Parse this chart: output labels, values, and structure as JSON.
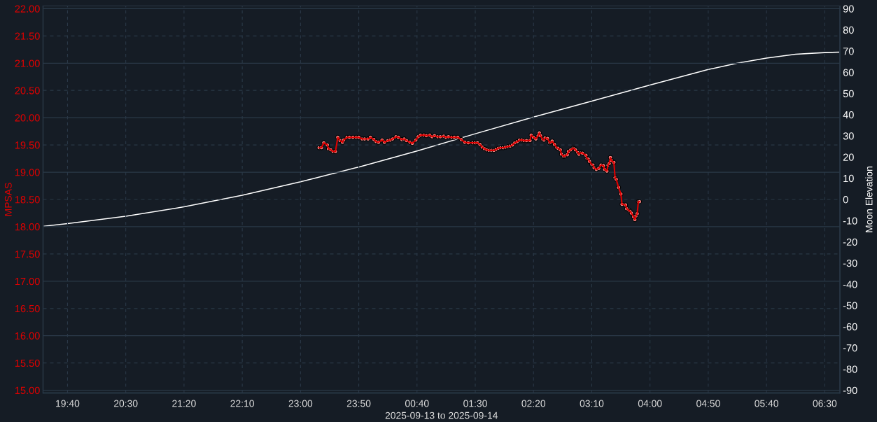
{
  "chart_data": {
    "type": "line",
    "xlabel": "2025-09-13 to 2025-09-14",
    "ylabel": "MPSAS",
    "y2label": "Moon Elevation",
    "xlim": [
      "2025-09-13T19:19",
      "2025-09-14T06:43"
    ],
    "xticks": [
      {
        "value": "2025-09-13T19:40",
        "label": "19:40"
      },
      {
        "value": "2025-09-13T20:30",
        "label": "20:30"
      },
      {
        "value": "2025-09-13T21:20",
        "label": "21:20"
      },
      {
        "value": "2025-09-13T22:10",
        "label": "22:10"
      },
      {
        "value": "2025-09-13T23:00",
        "label": "23:00"
      },
      {
        "value": "2025-09-13T23:50",
        "label": "23:50"
      },
      {
        "value": "2025-09-14T00:40",
        "label": "00:40"
      },
      {
        "value": "2025-09-14T01:30",
        "label": "01:30"
      },
      {
        "value": "2025-09-14T02:20",
        "label": "02:20"
      },
      {
        "value": "2025-09-14T03:10",
        "label": "03:10"
      },
      {
        "value": "2025-09-14T04:00",
        "label": "04:00"
      },
      {
        "value": "2025-09-14T04:50",
        "label": "04:50"
      },
      {
        "value": "2025-09-14T05:40",
        "label": "05:40"
      },
      {
        "value": "2025-09-14T06:30",
        "label": "06:30"
      }
    ],
    "ylim": [
      14.95,
      22.05
    ],
    "yticks": [
      {
        "value": 22,
        "label": "22.00"
      },
      {
        "value": 21.5,
        "label": "21.50"
      },
      {
        "value": 21,
        "label": "21.00"
      },
      {
        "value": 20.5,
        "label": "20.50"
      },
      {
        "value": 20,
        "label": "20.00"
      },
      {
        "value": 19.5,
        "label": "19.50"
      },
      {
        "value": 19,
        "label": "19.00"
      },
      {
        "value": 18.5,
        "label": "18.50"
      },
      {
        "value": 18,
        "label": "18.00"
      },
      {
        "value": 17.5,
        "label": "17.50"
      },
      {
        "value": 17,
        "label": "17.00"
      },
      {
        "value": 16.5,
        "label": "16.50"
      },
      {
        "value": 16,
        "label": "16.00"
      },
      {
        "value": 15.5,
        "label": "15.50"
      },
      {
        "value": 15,
        "label": "15.00"
      }
    ],
    "y2lim": [
      -91.3,
      91.3
    ],
    "y2ticks": [
      90,
      80,
      70,
      60,
      50,
      40,
      30,
      20,
      10,
      0,
      -10,
      -20,
      -30,
      -40,
      -50,
      -60,
      -70,
      -80,
      -90
    ],
    "grid": true,
    "series": [
      {
        "color": "#e00000",
        "marker": "circle",
        "x": [
          "2025-09-13T23:16",
          "2025-09-13T23:18",
          "2025-09-13T23:20",
          "2025-09-13T23:23",
          "2025-09-13T23:24",
          "2025-09-13T23:26",
          "2025-09-13T23:28",
          "2025-09-13T23:30",
          "2025-09-13T23:32",
          "2025-09-13T23:34",
          "2025-09-13T23:36",
          "2025-09-13T23:37",
          "2025-09-13T23:40",
          "2025-09-13T23:42",
          "2025-09-13T23:45",
          "2025-09-13T23:48",
          "2025-09-13T23:50",
          "2025-09-13T23:53",
          "2025-09-13T23:55",
          "2025-09-13T23:58",
          "2025-09-14T00:00",
          "2025-09-14T00:03",
          "2025-09-14T00:05",
          "2025-09-14T00:07",
          "2025-09-14T00:10",
          "2025-09-14T00:12",
          "2025-09-14T00:15",
          "2025-09-14T00:17",
          "2025-09-14T00:19",
          "2025-09-14T00:22",
          "2025-09-14T00:24",
          "2025-09-14T00:27",
          "2025-09-14T00:29",
          "2025-09-14T00:31",
          "2025-09-14T00:34",
          "2025-09-14T00:36",
          "2025-09-14T00:39",
          "2025-09-14T00:41",
          "2025-09-14T00:43",
          "2025-09-14T00:46",
          "2025-09-14T00:48",
          "2025-09-14T00:51",
          "2025-09-14T00:53",
          "2025-09-14T00:55",
          "2025-09-14T00:58",
          "2025-09-14T01:00",
          "2025-09-14T01:03",
          "2025-09-14T01:05",
          "2025-09-14T01:07",
          "2025-09-14T01:10",
          "2025-09-14T01:12",
          "2025-09-14T01:15",
          "2025-09-14T01:18",
          "2025-09-14T01:21",
          "2025-09-14T01:24",
          "2025-09-14T01:28",
          "2025-09-14T01:30",
          "2025-09-14T01:32",
          "2025-09-14T01:34",
          "2025-09-14T01:36",
          "2025-09-14T01:38",
          "2025-09-14T01:40",
          "2025-09-14T01:42",
          "2025-09-14T01:44",
          "2025-09-14T01:46",
          "2025-09-14T01:48",
          "2025-09-14T01:50",
          "2025-09-14T01:52",
          "2025-09-14T01:54",
          "2025-09-14T01:56",
          "2025-09-14T01:58",
          "2025-09-14T02:00",
          "2025-09-14T02:02",
          "2025-09-14T02:04",
          "2025-09-14T02:06",
          "2025-09-14T02:08",
          "2025-09-14T02:10",
          "2025-09-14T02:12",
          "2025-09-14T02:14",
          "2025-09-14T02:17",
          "2025-09-14T02:18",
          "2025-09-14T02:20",
          "2025-09-14T02:22",
          "2025-09-14T02:24",
          "2025-09-14T02:25",
          "2025-09-14T02:26",
          "2025-09-14T02:28",
          "2025-09-14T02:29",
          "2025-09-14T02:30",
          "2025-09-14T02:32",
          "2025-09-14T02:34",
          "2025-09-14T02:35",
          "2025-09-14T02:36",
          "2025-09-14T02:38",
          "2025-09-14T02:40",
          "2025-09-14T02:41",
          "2025-09-14T02:43",
          "2025-09-14T02:44",
          "2025-09-14T02:46",
          "2025-09-14T02:47",
          "2025-09-14T02:49",
          "2025-09-14T02:50",
          "2025-09-14T02:52",
          "2025-09-14T02:54",
          "2025-09-14T02:55",
          "2025-09-14T02:56",
          "2025-09-14T02:58",
          "2025-09-14T02:59",
          "2025-09-14T03:01",
          "2025-09-14T03:02",
          "2025-09-14T03:05",
          "2025-09-14T03:06",
          "2025-09-14T03:07",
          "2025-09-14T03:08",
          "2025-09-14T03:10",
          "2025-09-14T03:11",
          "2025-09-14T03:12",
          "2025-09-14T03:14",
          "2025-09-14T03:16",
          "2025-09-14T03:18",
          "2025-09-14T03:20",
          "2025-09-14T03:21",
          "2025-09-14T03:23",
          "2025-09-14T03:24",
          "2025-09-14T03:25",
          "2025-09-14T03:26",
          "2025-09-14T03:27",
          "2025-09-14T03:29",
          "2025-09-14T03:30",
          "2025-09-14T03:31",
          "2025-09-14T03:33",
          "2025-09-14T03:35",
          "2025-09-14T03:36",
          "2025-09-14T03:39",
          "2025-09-14T03:40",
          "2025-09-14T03:42",
          "2025-09-14T03:43",
          "2025-09-14T03:44",
          "2025-09-14T03:46",
          "2025-09-14T03:47",
          "2025-09-14T03:48",
          "2025-09-14T03:49",
          "2025-09-14T03:50",
          "2025-09-14T03:51"
        ],
        "values": [
          19.45,
          19.45,
          19.54,
          19.5,
          19.43,
          19.41,
          19.38,
          19.38,
          19.64,
          19.58,
          19.55,
          19.59,
          19.64,
          19.64,
          19.64,
          19.64,
          19.64,
          19.61,
          19.61,
          19.61,
          19.64,
          19.6,
          19.56,
          19.55,
          19.59,
          19.55,
          19.58,
          19.59,
          19.61,
          19.65,
          19.64,
          19.6,
          19.61,
          19.58,
          19.55,
          19.53,
          19.59,
          19.65,
          19.68,
          19.68,
          19.67,
          19.68,
          19.65,
          19.67,
          19.65,
          19.65,
          19.66,
          19.64,
          19.65,
          19.64,
          19.64,
          19.64,
          19.6,
          19.55,
          19.54,
          19.54,
          19.54,
          19.54,
          19.51,
          19.46,
          19.43,
          19.41,
          19.4,
          19.4,
          19.4,
          19.42,
          19.44,
          19.45,
          19.45,
          19.46,
          19.47,
          19.48,
          19.5,
          19.54,
          19.56,
          19.59,
          19.59,
          19.58,
          19.58,
          19.58,
          19.68,
          19.64,
          19.61,
          19.67,
          19.72,
          19.67,
          19.6,
          19.59,
          19.63,
          19.62,
          19.54,
          19.55,
          19.57,
          19.51,
          19.45,
          19.44,
          19.41,
          19.33,
          19.29,
          19.3,
          19.32,
          19.38,
          19.41,
          19.44,
          19.43,
          19.41,
          19.36,
          19.33,
          19.36,
          19.35,
          19.31,
          19.25,
          19.24,
          19.2,
          19.14,
          19.13,
          19.08,
          19.05,
          19.07,
          19.13,
          19.12,
          19.05,
          19.02,
          19.13,
          19.16,
          19.27,
          19.21,
          19.18,
          18.9,
          18.87,
          18.72,
          18.6,
          18.41,
          18.4,
          18.33,
          18.3,
          18.28,
          18.25,
          18.18,
          18.13,
          18.2,
          18.24,
          18.46,
          18.46
        ]
      },
      {
        "color": "#ffffff",
        "axis": "y2",
        "marker": "none",
        "x": [
          "2025-09-13T19:20",
          "2025-09-13T19:40",
          "2025-09-13T20:30",
          "2025-09-13T21:20",
          "2025-09-13T22:10",
          "2025-09-13T23:00",
          "2025-09-13T23:50",
          "2025-09-14T00:40",
          "2025-09-14T01:30",
          "2025-09-14T02:20",
          "2025-09-14T03:10",
          "2025-09-14T04:00",
          "2025-09-14T04:50",
          "2025-09-14T05:15",
          "2025-09-14T05:40",
          "2025-09-14T06:05",
          "2025-09-14T06:30",
          "2025-09-14T06:42"
        ],
        "values": [
          -12.6,
          -11.4,
          -7.9,
          -3.5,
          2.0,
          8.3,
          15.3,
          22.9,
          31.0,
          38.9,
          46.4,
          54.0,
          61.3,
          64.3,
          66.7,
          68.5,
          69.3,
          69.5
        ]
      }
    ]
  }
}
